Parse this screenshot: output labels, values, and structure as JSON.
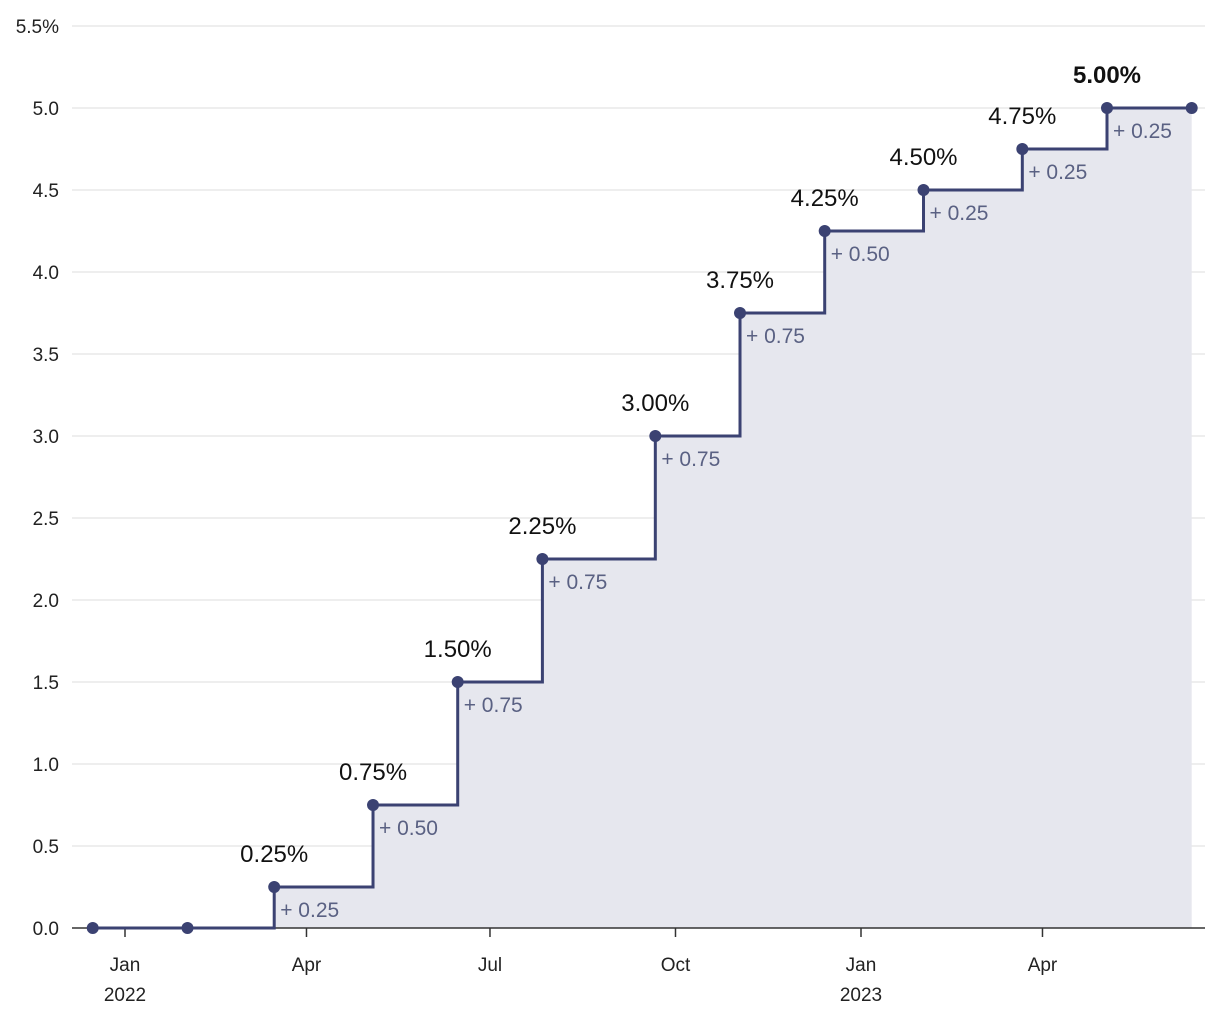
{
  "chart_data": {
    "type": "line",
    "style": "step",
    "title": "",
    "xlabel": "",
    "ylabel": "",
    "ylim": [
      0,
      5.5
    ],
    "y_ticks": [
      "0.0",
      "0.5",
      "1.0",
      "1.5",
      "2.0",
      "2.5",
      "3.0",
      "3.5",
      "4.0",
      "4.5",
      "5.0",
      "5.5%"
    ],
    "x_ticks": [
      {
        "label": "Jan",
        "sublabel": "2022",
        "date": "2022-01-01"
      },
      {
        "label": "Apr",
        "sublabel": "",
        "date": "2022-04-01"
      },
      {
        "label": "Jul",
        "sublabel": "",
        "date": "2022-07-01"
      },
      {
        "label": "Oct",
        "sublabel": "",
        "date": "2022-10-01"
      },
      {
        "label": "Jan",
        "sublabel": "2023",
        "date": "2023-01-01"
      },
      {
        "label": "Apr",
        "sublabel": "",
        "date": "2023-04-01"
      }
    ],
    "x_range": [
      "2021-12-01",
      "2023-06-30"
    ],
    "grid": true,
    "area_fill": true,
    "colors": {
      "line": "#3b4272",
      "fill": "#e6e7ee",
      "change_label": "#5a6183"
    },
    "points": [
      {
        "date": "2021-12-16",
        "value": 0.0,
        "label": "",
        "change": ""
      },
      {
        "date": "2022-02-01",
        "value": 0.0,
        "label": "",
        "change": ""
      },
      {
        "date": "2022-03-16",
        "value": 0.25,
        "label": "0.25%",
        "change": "+ 0.25"
      },
      {
        "date": "2022-05-04",
        "value": 0.75,
        "label": "0.75%",
        "change": "+ 0.50"
      },
      {
        "date": "2022-06-15",
        "value": 1.5,
        "label": "1.50%",
        "change": "+ 0.75"
      },
      {
        "date": "2022-07-27",
        "value": 2.25,
        "label": "2.25%",
        "change": "+ 0.75"
      },
      {
        "date": "2022-09-21",
        "value": 3.0,
        "label": "3.00%",
        "change": "+ 0.75"
      },
      {
        "date": "2022-11-02",
        "value": 3.75,
        "label": "3.75%",
        "change": "+ 0.75"
      },
      {
        "date": "2022-12-14",
        "value": 4.25,
        "label": "4.25%",
        "change": "+ 0.50"
      },
      {
        "date": "2023-02-01",
        "value": 4.5,
        "label": "4.50%",
        "change": "+ 0.25"
      },
      {
        "date": "2023-03-22",
        "value": 4.75,
        "label": "4.75%",
        "change": "+ 0.25"
      },
      {
        "date": "2023-05-03",
        "value": 5.0,
        "label": "5.00%",
        "change": "+ 0.25",
        "emphasis": true
      },
      {
        "date": "2023-06-14",
        "value": 5.0,
        "label": "",
        "change": ""
      }
    ]
  }
}
